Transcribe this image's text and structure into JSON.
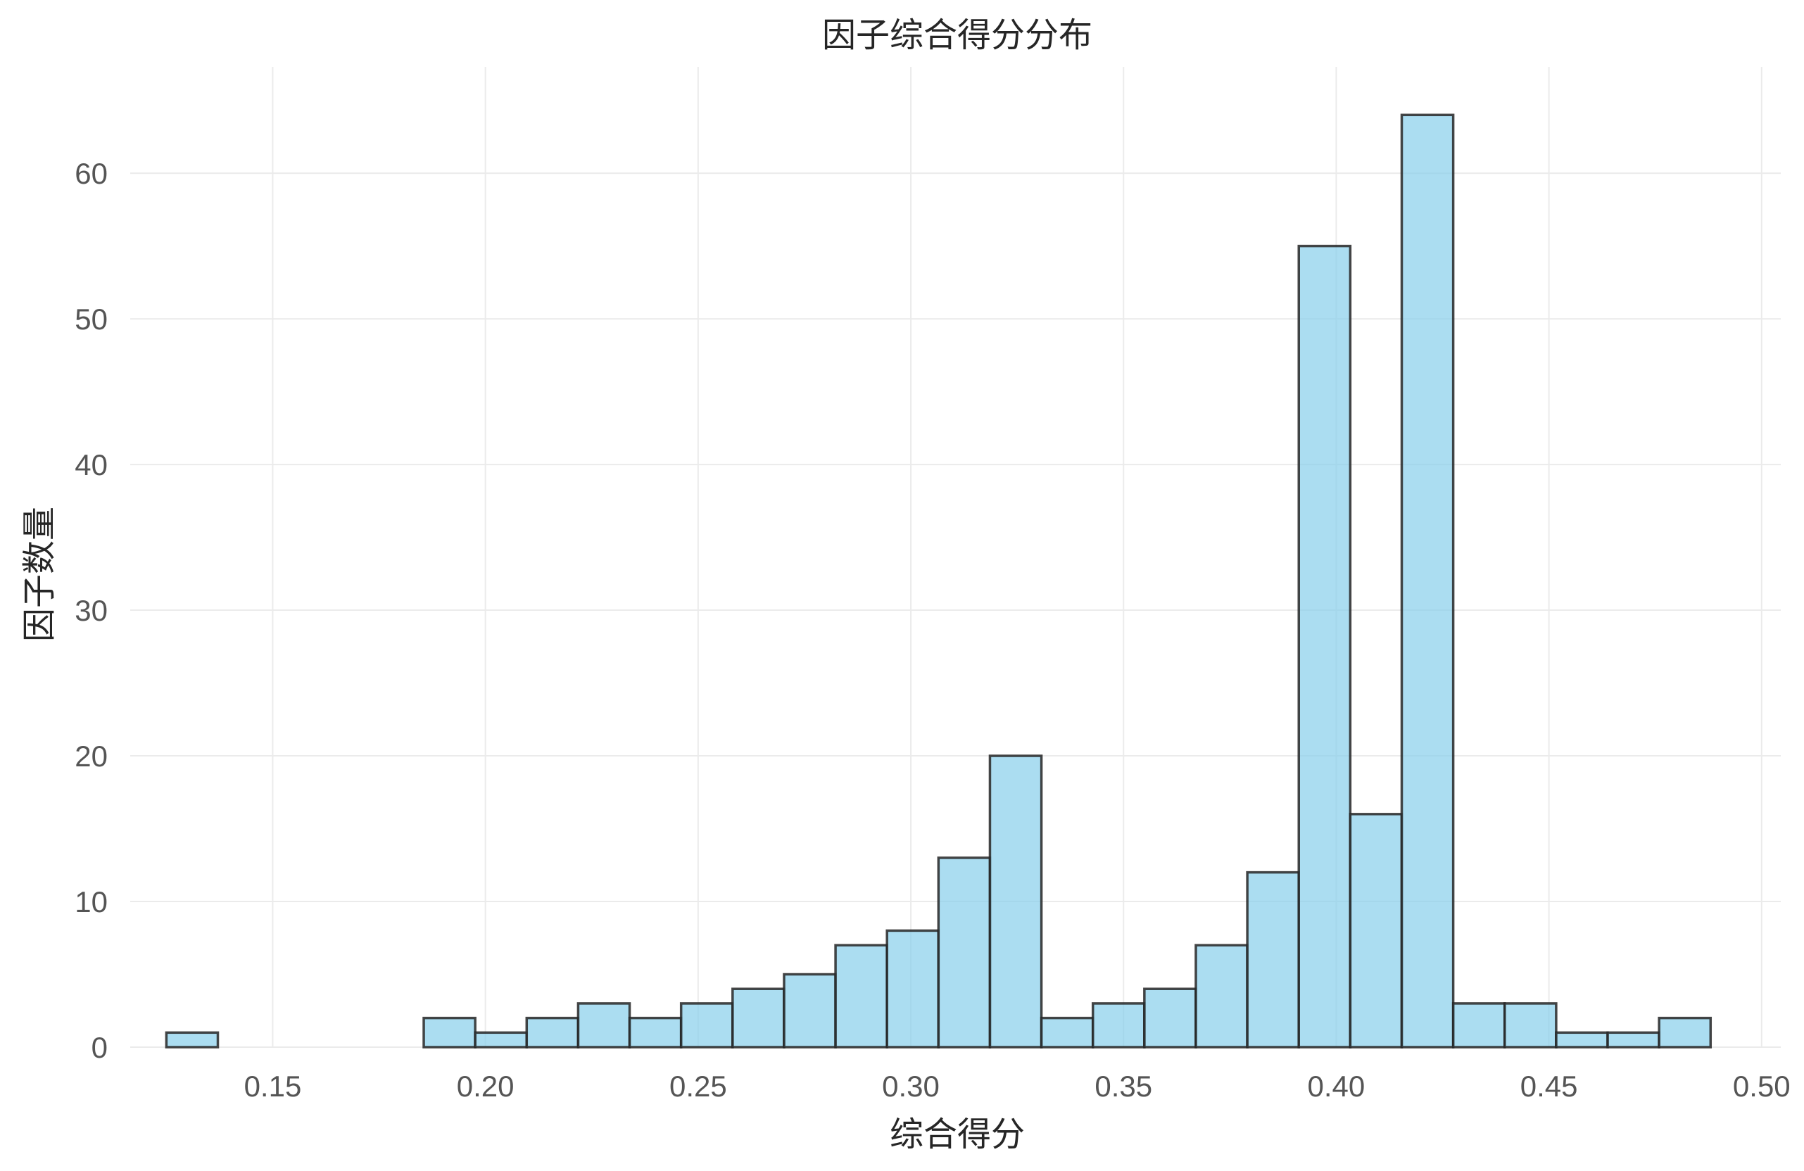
{
  "chart_data": {
    "type": "bar",
    "title": "因子综合得分分布",
    "xlabel": "综合得分",
    "ylabel": "因子数量",
    "xlim": [
      0.1165,
      0.5045
    ],
    "ylim": [
      0,
      67.3
    ],
    "x_ticks": [
      "0.15",
      "0.20",
      "0.25",
      "0.30",
      "0.35",
      "0.40",
      "0.45",
      "0.50"
    ],
    "y_ticks": [
      "0",
      "10",
      "20",
      "30",
      "40",
      "50",
      "60"
    ],
    "grid": true,
    "bin_width": 0.0121,
    "bins": [
      {
        "start": 0.125,
        "count": 1
      },
      {
        "start": 0.1371,
        "count": 0
      },
      {
        "start": 0.1492,
        "count": 0
      },
      {
        "start": 0.1613,
        "count": 0
      },
      {
        "start": 0.1734,
        "count": 0
      },
      {
        "start": 0.1855,
        "count": 2
      },
      {
        "start": 0.1976,
        "count": 1
      },
      {
        "start": 0.2097,
        "count": 2
      },
      {
        "start": 0.2218,
        "count": 3
      },
      {
        "start": 0.2339,
        "count": 2
      },
      {
        "start": 0.246,
        "count": 3
      },
      {
        "start": 0.2581,
        "count": 4
      },
      {
        "start": 0.2702,
        "count": 5
      },
      {
        "start": 0.2823,
        "count": 7
      },
      {
        "start": 0.2944,
        "count": 8
      },
      {
        "start": 0.3065,
        "count": 13
      },
      {
        "start": 0.3186,
        "count": 20
      },
      {
        "start": 0.3307,
        "count": 2
      },
      {
        "start": 0.3428,
        "count": 3
      },
      {
        "start": 0.3549,
        "count": 4
      },
      {
        "start": 0.367,
        "count": 7
      },
      {
        "start": 0.3791,
        "count": 12
      },
      {
        "start": 0.3912,
        "count": 55
      },
      {
        "start": 0.4033,
        "count": 16
      },
      {
        "start": 0.4154,
        "count": 64
      },
      {
        "start": 0.4275,
        "count": 3
      },
      {
        "start": 0.4396,
        "count": 3
      },
      {
        "start": 0.4517,
        "count": 1
      },
      {
        "start": 0.4638,
        "count": 1
      },
      {
        "start": 0.4759,
        "count": 2
      }
    ]
  }
}
